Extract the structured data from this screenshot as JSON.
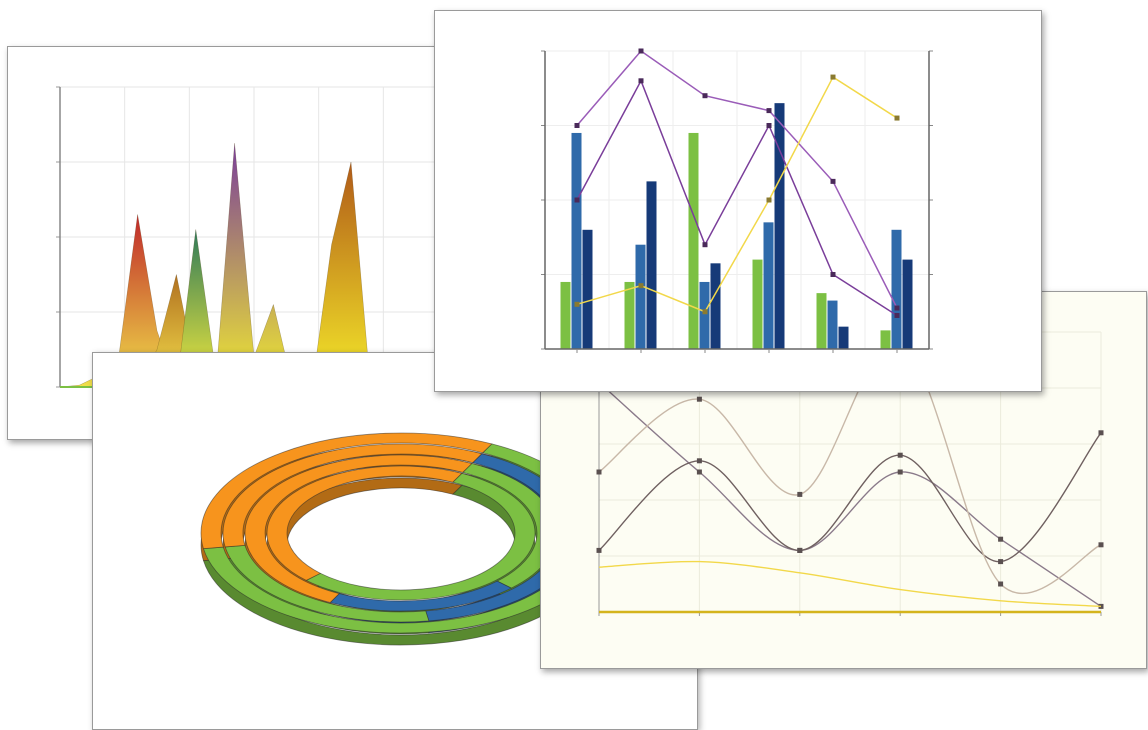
{
  "colors": {
    "green": "#7cc043",
    "darkgreen": "#5a9b2a",
    "blue": "#2f6aaa",
    "navy": "#163a78",
    "orange": "#f7941d",
    "purple": "#8c4aa8",
    "yellow": "#f2d84a",
    "gray": "#777777"
  },
  "chart_data": [
    {
      "type": "area",
      "y": [
        0,
        200,
        400,
        600,
        800
      ],
      "ylim": [
        0,
        800
      ],
      "series": [
        {
          "values": [
            0,
            5,
            30,
            70,
            460,
            150,
            0,
            0,
            0,
            0,
            0,
            0,
            0,
            0,
            0,
            0,
            0,
            0,
            0,
            0,
            0
          ]
        },
        {
          "values": [
            0,
            0,
            0,
            0,
            0,
            100,
            300,
            40,
            0,
            0,
            0,
            0,
            0,
            0,
            0,
            0,
            0,
            0,
            0,
            0,
            0
          ]
        },
        {
          "values": [
            0,
            0,
            0,
            0,
            0,
            0,
            0,
            420,
            50,
            0,
            0,
            0,
            0,
            0,
            0,
            0,
            0,
            0,
            0,
            0,
            0
          ]
        },
        {
          "values": [
            0,
            0,
            0,
            0,
            0,
            0,
            0,
            0,
            0,
            650,
            80,
            220,
            0,
            0,
            0,
            0,
            0,
            0,
            0,
            0,
            0
          ]
        },
        {
          "values": [
            0,
            0,
            0,
            0,
            0,
            0,
            0,
            0,
            0,
            0,
            0,
            0,
            0,
            0,
            380,
            600,
            0,
            0,
            0,
            0,
            0
          ]
        }
      ]
    },
    {
      "type": "bar",
      "categories": [
        "",
        "",
        "",
        "",
        "",
        ""
      ],
      "ylim": [
        0,
        400
      ],
      "y2lim": [
        0,
        2
      ],
      "series": [
        {
          "values": [
            90,
            90,
            290,
            120,
            75,
            25
          ]
        },
        {
          "values": [
            290,
            140,
            90,
            170,
            65,
            160
          ]
        },
        {
          "values": [
            160,
            225,
            115,
            330,
            30,
            120
          ]
        }
      ],
      "lines": [
        {
          "values": [
            300,
            400,
            340,
            320,
            225,
            55
          ]
        },
        {
          "values": [
            200,
            360,
            140,
            300,
            100,
            45
          ]
        },
        {
          "values": [
            60,
            85,
            50,
            200,
            365,
            310
          ]
        }
      ]
    },
    {
      "type": "pie",
      "rings": [
        {
          "segments": [
            {
              "value": 65,
              "color": "#7cc043"
            },
            {
              "value": 35,
              "color": "#f7941d"
            }
          ]
        },
        {
          "segments": [
            {
              "value": 40,
              "color": "#2f6aaa"
            },
            {
              "value": 25,
              "color": "#7cc043"
            },
            {
              "value": 35,
              "color": "#f7941d"
            }
          ]
        },
        {
          "segments": [
            {
              "value": 30,
              "color": "#7cc043"
            },
            {
              "value": 20,
              "color": "#2f6aaa"
            },
            {
              "value": 50,
              "color": "#f7941d"
            }
          ]
        },
        {
          "segments": [
            {
              "value": 55,
              "color": "#7cc043"
            },
            {
              "value": 45,
              "color": "#f7941d"
            }
          ]
        }
      ]
    },
    {
      "type": "line",
      "ylim": [
        0,
        250
      ],
      "series": [
        {
          "values": [
            205,
            125,
            55,
            125,
            65,
            5
          ]
        },
        {
          "values": [
            55,
            135,
            55,
            140,
            45,
            160
          ]
        },
        {
          "values": [
            125,
            190,
            105,
            240,
            25,
            60
          ]
        },
        {
          "values": [
            40,
            45,
            35,
            20,
            10,
            5
          ]
        }
      ]
    }
  ]
}
